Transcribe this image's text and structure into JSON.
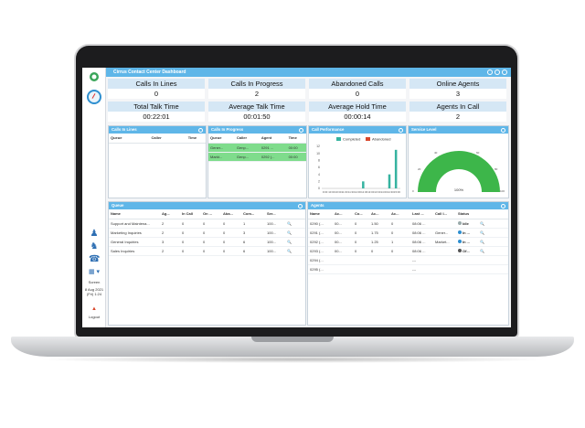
{
  "app": {
    "title": "Cirrus Contact Center Dashboard"
  },
  "sidebar": {
    "screen_label": "Screen",
    "datetime": "8 Aug 2021 (Fri) 1:24",
    "logout_label": "Logout"
  },
  "stats": [
    {
      "label": "Calls In Lines",
      "value": "0"
    },
    {
      "label": "Calls In Progress",
      "value": "2"
    },
    {
      "label": "Abandoned Calls",
      "value": "0"
    },
    {
      "label": "Online Agents",
      "value": "3"
    },
    {
      "label": "Total Talk Time",
      "value": "00:22:01"
    },
    {
      "label": "Average Talk Time",
      "value": "00:01:50"
    },
    {
      "label": "Average Hold Time",
      "value": "00:00:14"
    },
    {
      "label": "Agents In Call",
      "value": "2"
    }
  ],
  "calls_in_lines": {
    "title": "Calls In Lines",
    "columns": [
      "Queue",
      "Caller",
      "Time"
    ]
  },
  "calls_in_progress": {
    "title": "Calls In Progress",
    "columns": [
      "Queue",
      "Caller",
      "Agent",
      "Time"
    ],
    "rows": [
      [
        "Gener...",
        "Genp...",
        "0291 ...",
        "00:00"
      ],
      [
        "Markt...",
        "Genp...",
        "0292 (...",
        "00:00"
      ]
    ]
  },
  "call_performance": {
    "title": "Call Performance",
    "legend": [
      "Completed",
      "Abandoned"
    ]
  },
  "service_level": {
    "title": "Service Level",
    "value_label": "100%"
  },
  "queue": {
    "title": "Queue",
    "columns": [
      "Name",
      "Ag...",
      "In Call",
      "On ...",
      "Aba...",
      "Com...",
      "Ser..."
    ],
    "rows": [
      [
        "Support and Maintena...",
        "2",
        "0",
        "0",
        "0",
        "1",
        "100..."
      ],
      [
        "Marketing Inquiries",
        "2",
        "0",
        "0",
        "0",
        "3",
        "100..."
      ],
      [
        "General Inquiries",
        "3",
        "0",
        "0",
        "0",
        "6",
        "100..."
      ],
      [
        "Sales Inquiries",
        "2",
        "0",
        "0",
        "0",
        "6",
        "100..."
      ]
    ]
  },
  "agents": {
    "title": "Agents",
    "columns": [
      "Name",
      "Ac...",
      "Co...",
      "Ac...",
      "Ac...",
      "Last ...",
      "Call I...",
      "Status"
    ],
    "rows": [
      [
        "0290 (...",
        "00...",
        "0",
        "1.50",
        "0",
        "08:06 ...",
        "",
        "Idle"
      ],
      [
        "0291 (...",
        "00...",
        "0",
        "1.75",
        "0",
        "08:06 ...",
        "Gener...",
        "In ..."
      ],
      [
        "0292 (...",
        "00...",
        "0",
        "1.25",
        "1",
        "08:06 ...",
        "Market...",
        "In ..."
      ],
      [
        "0293 (...",
        "00...",
        "0",
        "0",
        "0",
        "08:06 ...",
        "",
        "Of..."
      ],
      [
        "0294 (...",
        "",
        "",
        "",
        "",
        "---",
        "",
        ""
      ],
      [
        "0295 (...",
        "",
        "",
        "",
        "",
        "---",
        "",
        ""
      ]
    ]
  },
  "chart_data": {
    "type": "bar",
    "title": "Call Performance",
    "categories": [
      "9:30",
      "10:00",
      "10:30",
      "11:00",
      "11:30",
      "12:00",
      "12:30",
      "13:00",
      "13:30",
      "14:00",
      "14:30",
      "15:00"
    ],
    "series": [
      {
        "name": "Completed",
        "values": [
          0,
          0,
          0,
          0,
          0,
          0,
          2,
          0,
          0,
          0,
          4,
          11
        ]
      },
      {
        "name": "Abandoned",
        "values": [
          0,
          0,
          0,
          0,
          0,
          0,
          0,
          0,
          0,
          0,
          0,
          0
        ]
      }
    ],
    "ylim": [
      0,
      12
    ],
    "yticks": [
      0,
      2,
      4,
      6,
      8,
      10,
      12
    ],
    "colors": {
      "Completed": "#36b3a0",
      "Abandoned": "#d9472b"
    },
    "legend_position": "top"
  },
  "colors": {
    "accent": "#5fb6e8",
    "header_cell": "#d5e7f5",
    "in_call_row": "#7fdc8c",
    "gauge": "#3db64a"
  }
}
